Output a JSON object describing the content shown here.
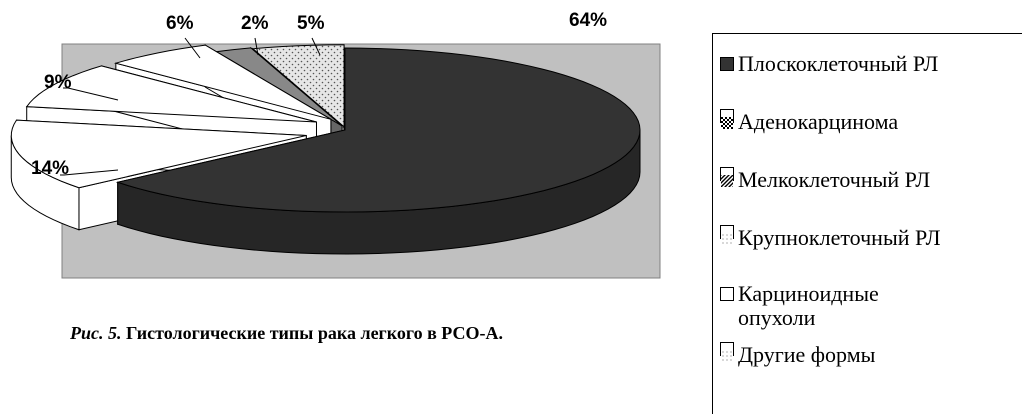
{
  "caption": {
    "figure_number": "Рис. 5.",
    "text": "Гистологические типы рака легкого в РСО-А."
  },
  "chart_data": {
    "type": "pie",
    "subtype": "3d-exploded",
    "series": [
      {
        "name": "Плоскоклеточный РЛ",
        "value": 64,
        "label": "64%",
        "color": "#333333",
        "pattern": "solid"
      },
      {
        "name": "Аденокарцинома",
        "value": 14,
        "label": "14%",
        "color": "#ffffff",
        "pattern": "none"
      },
      {
        "name": "Мелкоклеточный РЛ",
        "value": 9,
        "label": "9%",
        "color": "#ffffff",
        "pattern": "none"
      },
      {
        "name": "Крупноклеточный РЛ",
        "value": 6,
        "label": "6%",
        "color": "#ffffff",
        "pattern": "none"
      },
      {
        "name": "Карциноидные опухоли",
        "value": 2,
        "label": "2%",
        "color": "#888888",
        "pattern": "solid"
      },
      {
        "name": "Другие  формы",
        "value": 5,
        "label": "5%",
        "color": "#dddddd",
        "pattern": "dots"
      }
    ],
    "legend": [
      {
        "label": "Плоскоклеточный РЛ",
        "swatch": "solid-dark"
      },
      {
        "label": "Аденокарцинома",
        "swatch": "checker"
      },
      {
        "label": "Мелкоклеточный РЛ",
        "swatch": "diagonal"
      },
      {
        "label": "Крупноклеточный РЛ",
        "swatch": "light-dots"
      },
      {
        "label_lines": [
          "Карциноидные",
          "опухоли"
        ],
        "swatch": "empty"
      },
      {
        "label": "Другие  формы",
        "swatch": "light-dots"
      }
    ],
    "legend_position": "right",
    "plot_background": "#c0c0c0"
  }
}
